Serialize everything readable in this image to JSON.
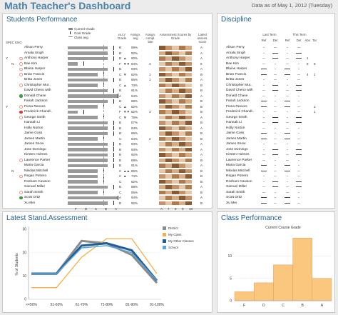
{
  "header": {
    "title": "Math Teacher's Dashboard",
    "as_of": "Data as of May 1, 2012 (Tuesday)"
  },
  "students_panel": {
    "title": "Students Performance",
    "legend": [
      "Current Grade",
      "Goal Grade",
      "Class avg"
    ],
    "col_headers": {
      "spec_eng": "SPEC ENG",
      "vs_grade": "vs.LY Grade",
      "assign_avg": "Assign. avg",
      "assign_compl": "Assign. compl. late",
      "assess_scores": "Assessment Scores by Grade",
      "latest_assess": "Latest assess. score"
    },
    "grade_axis": [
      "F",
      "D",
      "C",
      "B",
      "A"
    ],
    "assess_axis": [
      "A",
      "7",
      "8",
      "9",
      "10"
    ],
    "students": [
      {
        "flag_spec": "",
        "flag_eng": "",
        "dot": "",
        "name": "Alison Perry",
        "grade": "B",
        "arrow": "",
        "avg": "89%",
        "late": "",
        "latest": "A"
      },
      {
        "flag_spec": "",
        "flag_eng": "",
        "dot": "",
        "name": "Amala Singh",
        "grade": "B",
        "arrow": "",
        "avg": "92%",
        "late": "",
        "latest": "A"
      },
      {
        "flag_spec": "Y",
        "flag_eng": "",
        "dot": "hollow",
        "name": "Anthony Harper",
        "grade": "B",
        "arrow": "▲",
        "avg": "90%",
        "late": "",
        "latest": "A"
      },
      {
        "flag_spec": "",
        "flag_eng": "N",
        "dot": "hollow",
        "name": "Bae Kim",
        "grade": "F",
        "arrow": "▼▼",
        "avg": "84%",
        "late": "3",
        "latest": "8"
      },
      {
        "flag_spec": "",
        "flag_eng": "",
        "dot": "hollow",
        "name": "Blaine Harper",
        "grade": "B",
        "arrow": "",
        "avg": "93%",
        "late": "",
        "latest": "A"
      },
      {
        "flag_spec": "",
        "flag_eng": "",
        "dot": "hollow",
        "name": "Brian Francis",
        "grade": "C",
        "arrow": "▼",
        "avg": "82%",
        "late": "1",
        "latest": "B"
      },
      {
        "flag_spec": "",
        "flag_eng": "",
        "dot": "",
        "name": "Britta Jones",
        "grade": "B",
        "arrow": "",
        "avg": "86%",
        "late": "1",
        "latest": "A"
      },
      {
        "flag_spec": "",
        "flag_eng": "",
        "dot": "hollow",
        "name": "Christopher Mur..",
        "grade": "C",
        "arrow": "▲",
        "avg": "73%",
        "late": "",
        "latest": "B"
      },
      {
        "flag_spec": "",
        "flag_eng": "",
        "dot": "",
        "name": "David Cheno with",
        "grade": "B",
        "arrow": "",
        "avg": "91%",
        "late": "",
        "latest": "B"
      },
      {
        "flag_spec": "",
        "flag_eng": "",
        "dot": "green",
        "name": "Donald Chase",
        "grade": "A",
        "arrow": "",
        "avg": "94%",
        "late": "",
        "latest": "A"
      },
      {
        "flag_spec": "",
        "flag_eng": "",
        "dot": "",
        "name": "Fariah Jackson",
        "grade": "B",
        "arrow": "",
        "avg": "88%",
        "late": "",
        "latest": "B"
      },
      {
        "flag_spec": "Y",
        "flag_eng": "",
        "dot": "hollow",
        "name": "Fiona Reeves",
        "grade": "C",
        "arrow": "▲",
        "avg": "82%",
        "late": "",
        "latest": "B"
      },
      {
        "flag_spec": "",
        "flag_eng": "",
        "dot": "red",
        "name": "Frederick Chandl..",
        "grade": "F",
        "arrow": "▼▼",
        "avg": "82%",
        "late": "3",
        "latest": "B"
      },
      {
        "flag_spec": "",
        "flag_eng": "",
        "dot": "hollow",
        "name": "George Smith",
        "grade": "C",
        "arrow": "▼",
        "avg": "79%",
        "late": "",
        "latest": "A"
      },
      {
        "flag_spec": "",
        "flag_eng": "",
        "dot": "",
        "name": "Hannah Li",
        "grade": "B",
        "arrow": "",
        "avg": "87%",
        "late": "",
        "latest": "B"
      },
      {
        "flag_spec": "",
        "flag_eng": "",
        "dot": "",
        "name": "Holly Norton",
        "grade": "B",
        "arrow": "",
        "avg": "94%",
        "late": "",
        "latest": "A"
      },
      {
        "flag_spec": "",
        "flag_eng": "",
        "dot": "",
        "name": "Jaime Goss",
        "grade": "B",
        "arrow": "",
        "avg": "86%",
        "late": "",
        "latest": "B"
      },
      {
        "flag_spec": "",
        "flag_eng": "",
        "dot": "",
        "name": "James Martin",
        "grade": "C",
        "arrow": "",
        "avg": "84%",
        "late": "2",
        "latest": "B"
      },
      {
        "flag_spec": "",
        "flag_eng": "",
        "dot": "",
        "name": "James Snow",
        "grade": "B",
        "arrow": "",
        "avg": "93%",
        "late": "",
        "latest": "A"
      },
      {
        "flag_spec": "",
        "flag_eng": "",
        "dot": "",
        "name": "Jose Domingo",
        "grade": "B",
        "arrow": "",
        "avg": "93%",
        "late": "",
        "latest": "A"
      },
      {
        "flag_spec": "",
        "flag_eng": "",
        "dot": "",
        "name": "Kirsten Holmes",
        "grade": "B",
        "arrow": "",
        "avg": "92%",
        "late": "",
        "latest": "A"
      },
      {
        "flag_spec": "",
        "flag_eng": "",
        "dot": "hollow",
        "name": "Lawrence Parker",
        "grade": "B",
        "arrow": "",
        "avg": "89%",
        "late": "",
        "latest": "B"
      },
      {
        "flag_spec": "",
        "flag_eng": "",
        "dot": "",
        "name": "Maria Garcia",
        "grade": "B",
        "arrow": "",
        "avg": "91%",
        "late": "",
        "latest": "A"
      },
      {
        "flag_spec": "",
        "flag_eng": "N",
        "dot": "",
        "name": "Nikolas Mitchell",
        "grade": "C",
        "arrow": "▲▲",
        "avg": "86%",
        "late": "",
        "latest": "B"
      },
      {
        "flag_spec": "",
        "flag_eng": "",
        "dot": "hollow",
        "name": "Regan Potrero",
        "grade": "C",
        "arrow": "▲",
        "avg": "74%",
        "late": "",
        "latest": "B"
      },
      {
        "flag_spec": "",
        "flag_eng": "",
        "dot": "",
        "name": "Rosham Cawson",
        "grade": "C",
        "arrow": "",
        "avg": "82%",
        "late": "",
        "latest": "B"
      },
      {
        "flag_spec": "",
        "flag_eng": "",
        "dot": "",
        "name": "Samuel Miller",
        "grade": "B",
        "arrow": "",
        "avg": "89%",
        "late": "",
        "latest": "A"
      },
      {
        "flag_spec": "",
        "flag_eng": "",
        "dot": "hollow",
        "name": "Sarah Smith",
        "grade": "C",
        "arrow": "",
        "avg": "85%",
        "late": "",
        "latest": "B"
      },
      {
        "flag_spec": "",
        "flag_eng": "",
        "dot": "green",
        "name": "Scott Ortiz",
        "grade": "A",
        "arrow": "",
        "avg": "94%",
        "late": "",
        "latest": "A"
      },
      {
        "flag_spec": "",
        "flag_eng": "",
        "dot": "",
        "name": "Xu Mei",
        "grade": "B",
        "arrow": "",
        "avg": "92%",
        "late": "",
        "latest": "B"
      }
    ]
  },
  "discipline_panel": {
    "title": "Discipline",
    "last_term": "Last Term",
    "this_term": "This Term",
    "sub_headers": [
      "Ref",
      "Det",
      "Ref",
      "Det",
      "Abs",
      "Tar"
    ],
    "names": [
      "Alison Perry",
      "Amala Singh",
      "Anthony Harper",
      "Bae Kim",
      "Blaine Harper",
      "Brian Francis",
      "Britta Jones",
      "Christopher Mur..",
      "David Cheno with",
      "Donald Chase",
      "Fariah Jackson",
      "Fiona Reeves",
      "Frederick Chandl..",
      "George Smith",
      "Hannah Li",
      "Holly Norton",
      "Jaime Goss",
      "James Martin",
      "James Snow",
      "Jose Domingo",
      "Kirsten Holmes",
      "Lawrence Parker",
      "Maria Garcia",
      "Nikolas Mitchell",
      "Regan Potrero",
      "Rosham Cawson",
      "Samuel Miller",
      "Sarah Smith",
      "Scott Ortiz",
      "Xu Mei"
    ],
    "abs": [
      "",
      "",
      "1",
      "8",
      "",
      "4",
      "",
      "",
      "",
      "",
      "",
      "",
      "",
      "",
      "",
      "",
      "",
      "",
      "",
      "",
      "",
      "",
      "",
      "",
      "",
      "",
      "",
      "",
      "",
      ""
    ],
    "tar": [
      "",
      "",
      "",
      "8",
      "",
      "1",
      "",
      "",
      "",
      "",
      "",
      "2",
      "1",
      "",
      "",
      "",
      "",
      "",
      "",
      "",
      "",
      "",
      "",
      "",
      "",
      "",
      "",
      "",
      "",
      ""
    ]
  },
  "assessment_panel": {
    "title": "Latest Stand.Assessment",
    "legend": [
      "District",
      "My Class",
      "My Other Classes",
      "School"
    ],
    "colors": {
      "district": "#8c8c8c",
      "my_class": "#f5b04a",
      "other": "#1f5f99",
      "school": "#5ba7d6"
    }
  },
  "class_panel": {
    "title": "Class Performance",
    "colors": {
      "bar": "#fbc67e",
      "bar_edge": "#d8934c"
    }
  },
  "chart_data": [
    {
      "type": "line",
      "title": "Latest Stand.Assessment",
      "ylabel": "% of Students",
      "x": [
        "<=50%",
        "51-60%",
        "61-70%",
        "71-80%",
        "81-90%",
        "91-100%"
      ],
      "ylim": [
        0,
        30
      ],
      "yticks": [
        0,
        10,
        20,
        30
      ],
      "series": [
        {
          "name": "District",
          "values": [
            11,
            11,
            25,
            24,
            19,
            7
          ]
        },
        {
          "name": "My Class",
          "values": [
            5,
            5,
            18,
            26,
            26,
            11
          ]
        },
        {
          "name": "My Other Classes",
          "values": [
            11,
            11,
            23,
            24,
            21,
            8
          ]
        },
        {
          "name": "School",
          "values": [
            11,
            11,
            22,
            23,
            20,
            8
          ]
        }
      ]
    },
    {
      "type": "bar",
      "title": "Current Course Grade",
      "categories": [
        "F",
        "D",
        "C",
        "B",
        "A"
      ],
      "values": [
        2,
        4,
        8,
        14,
        5
      ],
      "ylim": [
        0,
        15
      ],
      "yticks": [
        0,
        5,
        10
      ],
      "grid": true
    }
  ]
}
